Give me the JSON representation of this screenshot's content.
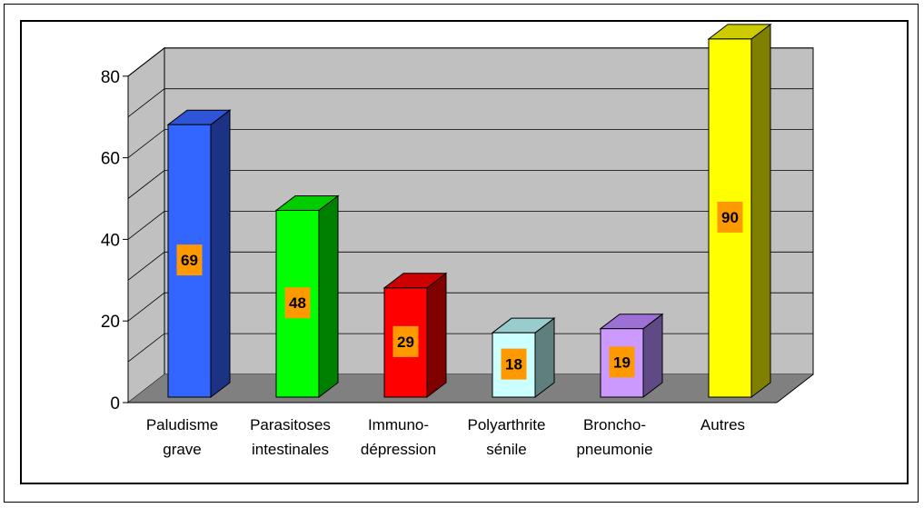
{
  "chart_data": {
    "type": "bar",
    "title": "",
    "xlabel": "",
    "ylabel": "",
    "ylim": [
      0,
      80
    ],
    "yticks": [
      "0",
      "20",
      "40",
      "60",
      "80"
    ],
    "categories": [
      [
        "Paludisme",
        "grave"
      ],
      [
        "Parasitoses",
        "intestinales"
      ],
      [
        "Immuno-",
        "dépression"
      ],
      [
        "Polyarthrite",
        "sénile"
      ],
      [
        "Broncho-",
        "pneumonie"
      ],
      [
        "Autres"
      ]
    ],
    "values": [
      69,
      48,
      29,
      18,
      19,
      90
    ],
    "data_labels": [
      "69",
      "48",
      "29",
      "18",
      "19",
      "90"
    ],
    "bar_colors": [
      {
        "front": "#3366ff",
        "side": "#1b3285",
        "top": "#2d55d6"
      },
      {
        "front": "#00ff00",
        "side": "#008000",
        "top": "#00cc00"
      },
      {
        "front": "#ff0000",
        "side": "#800000",
        "top": "#cc0000"
      },
      {
        "front": "#ccffff",
        "side": "#5f7f7f",
        "top": "#99cccc"
      },
      {
        "front": "#cc99ff",
        "side": "#5f4a85",
        "top": "#9d70d6"
      },
      {
        "front": "#ffff00",
        "side": "#808000",
        "top": "#cccc00"
      }
    ],
    "label_bg": "#ff9900",
    "wall_color": "#c0c0c0",
    "floor_color": "#808080",
    "grid": true
  }
}
